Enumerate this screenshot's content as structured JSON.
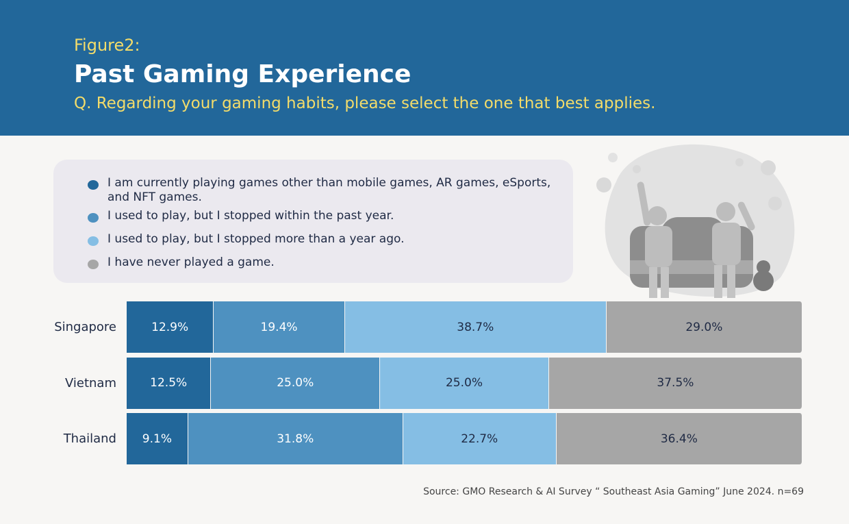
{
  "chart_data": {
    "type": "stacked-bar-horizontal",
    "label": "Figure2:",
    "title": "Past Gaming Experience",
    "subtitle": "Q. Regarding your gaming habits, please select the one that best applies.",
    "categories": [
      "Singapore",
      "Vietnam",
      "Thailand"
    ],
    "series": [
      {
        "name": "I am currently playing games other than mobile games, AR games, eSports, and NFT games.",
        "color": "#22679a",
        "values": [
          12.9,
          12.5,
          9.1
        ],
        "value_labels": [
          "12.9%",
          "12.5%",
          "9.1%"
        ]
      },
      {
        "name": "I used to play, but I stopped within the past year.",
        "color": "#4e91c0",
        "values": [
          19.4,
          25.0,
          31.8
        ],
        "value_labels": [
          "19.4%",
          "25.0%",
          "31.8%"
        ]
      },
      {
        "name": "I used to play, but I stopped more than a year ago.",
        "color": "#85bee4",
        "values": [
          38.7,
          25.0,
          22.7
        ],
        "value_labels": [
          "38.7%",
          "25.0%",
          "22.7%"
        ]
      },
      {
        "name": "I have never played a game.",
        "color": "#a6a6a6",
        "values": [
          29.0,
          37.5,
          36.4
        ],
        "value_labels": [
          "29.0%",
          "37.5%",
          "36.4%"
        ]
      }
    ],
    "source": "Source: GMO Research & AI Survey “ Southeast Asia Gaming” June 2024. n=69"
  }
}
